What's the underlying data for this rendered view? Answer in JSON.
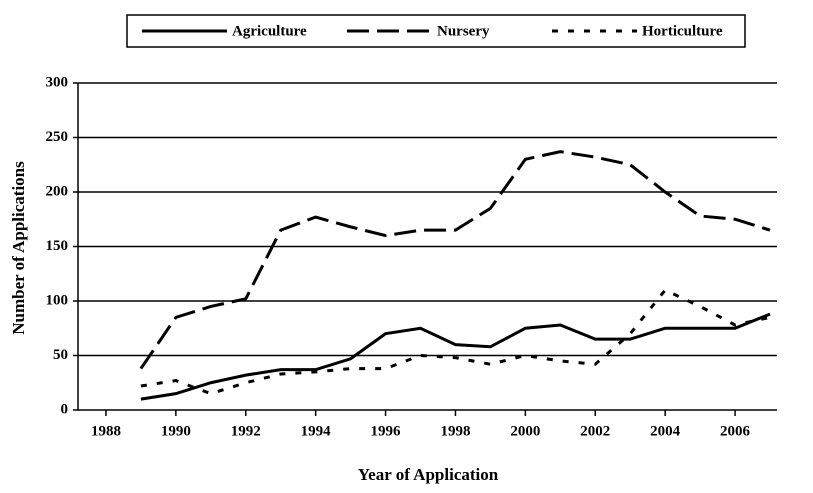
{
  "chart_data": {
    "type": "line",
    "x": [
      1989,
      1990,
      1991,
      1992,
      1993,
      1994,
      1995,
      1996,
      1997,
      1998,
      1999,
      2000,
      2001,
      2002,
      2003,
      2004,
      2005,
      2006,
      2007
    ],
    "series": [
      {
        "name": "Agriculture",
        "color": "#000000",
        "values": [
          10,
          15,
          25,
          32,
          37,
          37,
          47,
          70,
          75,
          60,
          58,
          75,
          78,
          65,
          65,
          75,
          75,
          75,
          88
        ]
      },
      {
        "name": "Nursery",
        "color": "#000000",
        "values": [
          38,
          85,
          95,
          102,
          165,
          177,
          168,
          160,
          165,
          165,
          185,
          230,
          237,
          232,
          225,
          200,
          178,
          175,
          165
        ]
      },
      {
        "name": "Horticulture",
        "color": "#000000",
        "values": [
          22,
          27,
          15,
          25,
          33,
          35,
          38,
          38,
          50,
          48,
          42,
          50,
          45,
          42,
          70,
          110,
          95,
          78,
          85
        ]
      }
    ],
    "xlabel": "Year of Application",
    "ylabel": "Number of Applications",
    "xlim": [
      1987.2,
      2007.2
    ],
    "xticks": [
      1988,
      1990,
      1992,
      1994,
      1996,
      1998,
      2000,
      2002,
      2004,
      2006
    ],
    "ylim": [
      0,
      300
    ],
    "yticks": [
      0,
      50,
      100,
      150,
      200,
      250,
      300
    ],
    "grid": true,
    "legend": "top"
  }
}
